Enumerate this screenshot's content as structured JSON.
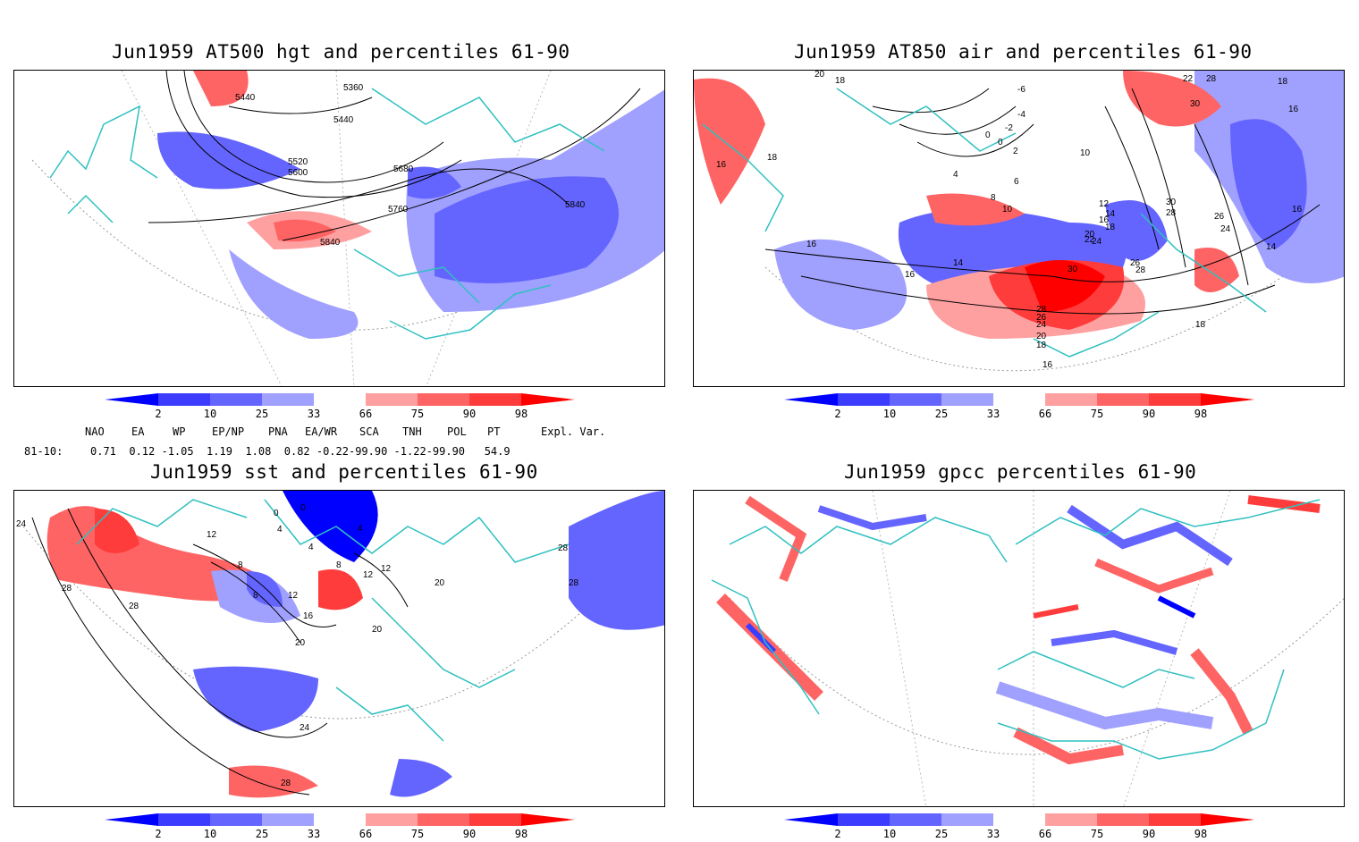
{
  "panels": [
    {
      "title": "Jun1959 AT500 hgt and percentiles 61-90",
      "contour_labels": [
        "5360",
        "5440",
        "5440",
        "5520",
        "5600",
        "5680",
        "5760",
        "5840",
        "5840"
      ]
    },
    {
      "title": "Jun1959 AT850 air and percentiles 61-90",
      "contour_labels": [
        "20",
        "18",
        "18",
        "16",
        "-6",
        "-4",
        "-2",
        "0",
        "0",
        "2",
        "4",
        "6",
        "8",
        "10",
        "10",
        "12",
        "14",
        "16",
        "18",
        "20",
        "22",
        "24",
        "26",
        "28",
        "30",
        "28",
        "26",
        "24",
        "20",
        "18",
        "16",
        "16",
        "16",
        "16",
        "14",
        "18",
        "22",
        "28",
        "30",
        "30",
        "28",
        "26",
        "24",
        "16",
        "14",
        "18"
      ]
    },
    {
      "title": "Jun1959 sst and percentiles 61-90",
      "contour_labels": [
        "24",
        "28",
        "28",
        "12",
        "8",
        "8",
        "12",
        "16",
        "20",
        "24",
        "28",
        "4",
        "4",
        "8",
        "12",
        "12",
        "20",
        "20",
        "28",
        "28",
        "4",
        "0",
        "0"
      ]
    },
    {
      "title": "Jun1959 gpcc percentiles 61-90",
      "contour_labels": []
    }
  ],
  "colorbar": {
    "ticks": [
      "2",
      "10",
      "25",
      "33",
      "66",
      "75",
      "90",
      "98"
    ],
    "colors": [
      "#0000ff",
      "#3c3cff",
      "#6464ff",
      "#a0a0ff",
      "#ffffff",
      "#ffa0a0",
      "#ff6464",
      "#ff3c3c",
      "#ff0000"
    ]
  },
  "teleconnections": {
    "headers": [
      "NAO",
      "EA",
      "WP",
      "EP/NP",
      "PNA",
      "EA/WR",
      "SCA",
      "TNH",
      "POL",
      "PT",
      "Expl. Var."
    ],
    "row_label": "81-10:",
    "row_text": "0.71  0.12 -1.05  1.19  1.08  0.82 -0.22-99.90 -1.22-99.90   54.9"
  },
  "colors": {
    "coast": "#30c0c0",
    "contour": "#000000",
    "blue": "#6464ff",
    "red": "#ff6464"
  }
}
